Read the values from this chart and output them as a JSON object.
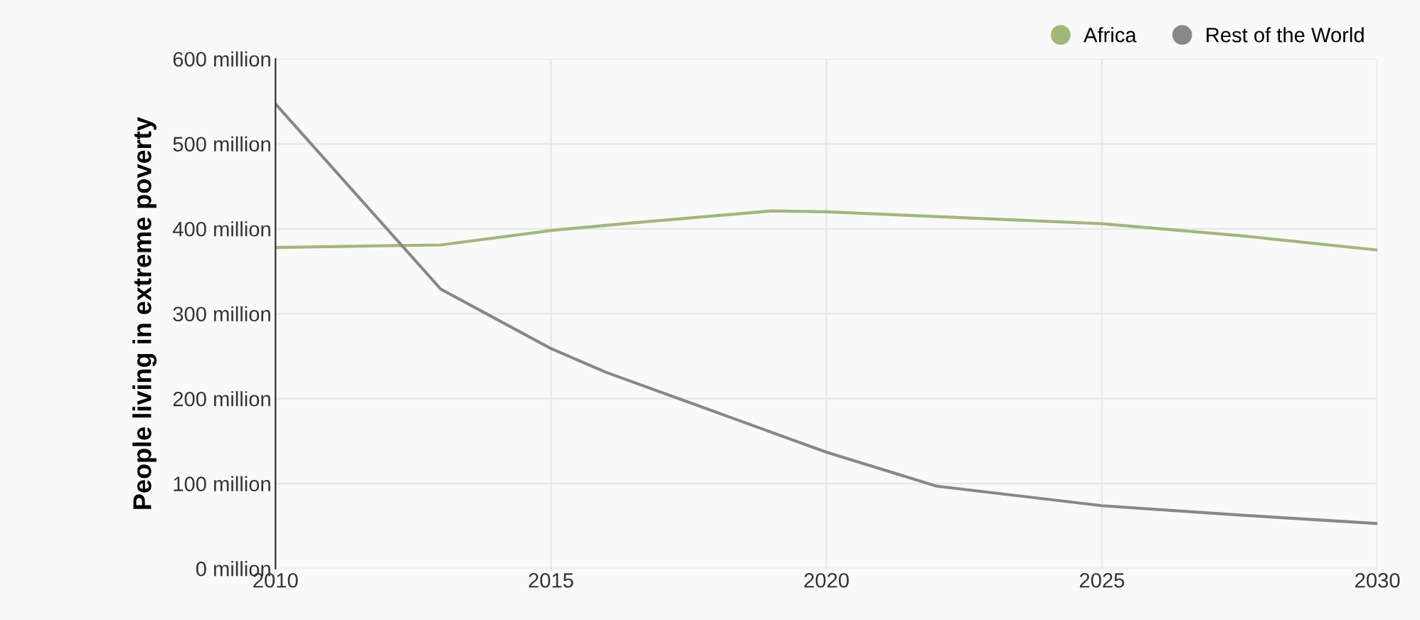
{
  "chart_data": {
    "type": "line",
    "ylabel": "People living in extreme poverty",
    "xlim": [
      2010,
      2030
    ],
    "xticks": [
      2010,
      2015,
      2020,
      2025,
      2030
    ],
    "ylim": [
      0,
      600
    ],
    "yticks": [
      {
        "value": 0,
        "label": "0 million"
      },
      {
        "value": 100,
        "label": "100 million"
      },
      {
        "value": 200,
        "label": "200 million"
      },
      {
        "value": 300,
        "label": "300 million"
      },
      {
        "value": 400,
        "label": "400 million"
      },
      {
        "value": 500,
        "label": "500 million"
      },
      {
        "value": 600,
        "label": "600 million"
      }
    ],
    "series": [
      {
        "name": "Africa",
        "color": "#9fb878",
        "x": [
          2010,
          2013,
          2015,
          2016.5,
          2019,
          2020,
          2025,
          2027.5,
          2030
        ],
        "values": [
          378,
          381,
          398,
          407,
          421,
          420,
          406,
          392,
          375
        ]
      },
      {
        "name": "Rest of the World",
        "color": "#888888",
        "x": [
          2010,
          2013,
          2015,
          2016,
          2018,
          2020,
          2022,
          2025,
          2027.5,
          2030
        ],
        "values": [
          547,
          329,
          259,
          231,
          184,
          137,
          97,
          74,
          63,
          53
        ]
      }
    ],
    "grid": true,
    "legend": "top right",
    "marker": "none",
    "line_style": "solid"
  }
}
